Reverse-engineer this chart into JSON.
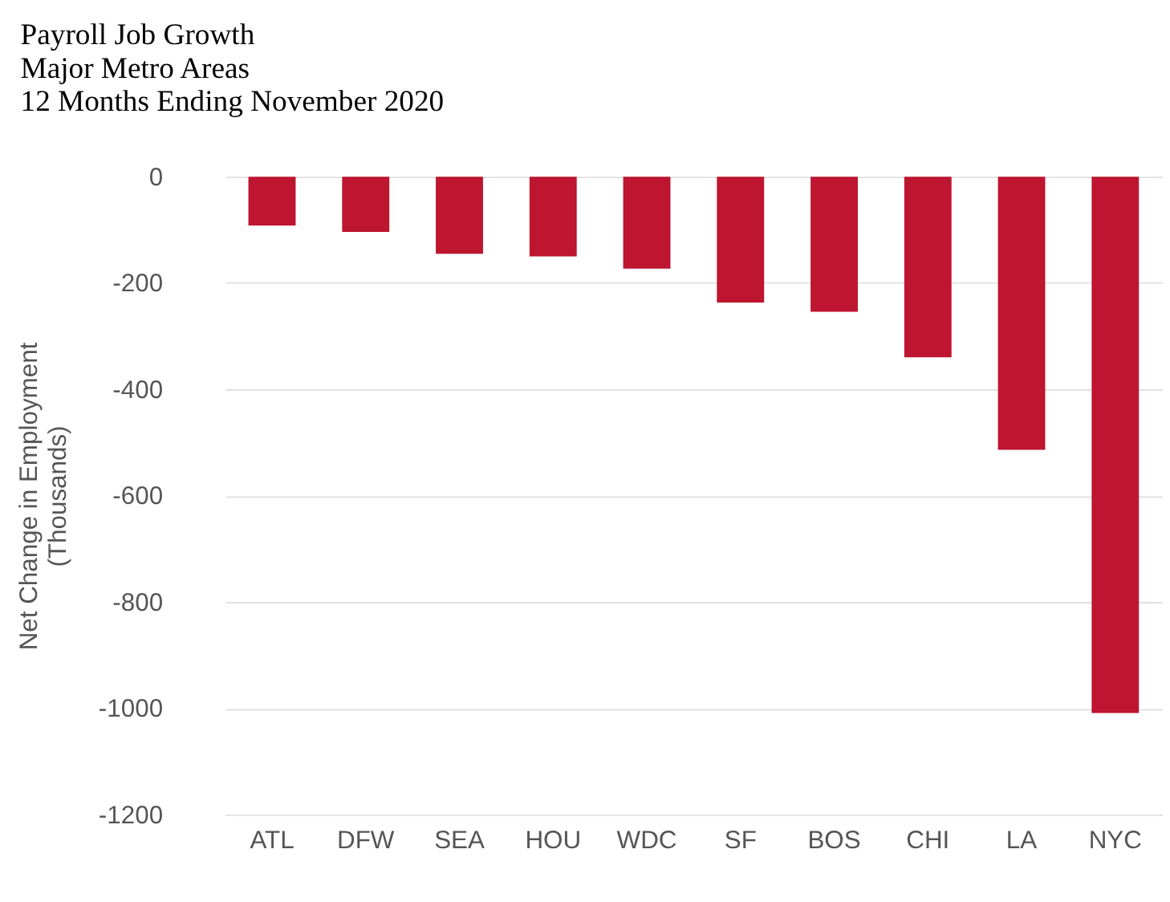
{
  "chart_data": {
    "type": "bar",
    "title": "Payroll Job Growth",
    "subtitle": "Major Metro Areas\n12 Months Ending November 2020",
    "ylabel": "Net Change in Employment\n(Thousands)",
    "categories": [
      "ATL",
      "DFW",
      "SEA",
      "HOU",
      "WDC",
      "SF",
      "BOS",
      "CHI",
      "LA",
      "NYC"
    ],
    "values": [
      -92,
      -104,
      -145,
      -150,
      -173,
      -237,
      -254,
      -340,
      -514,
      -1009
    ],
    "color": "#be1530",
    "ylim": [
      -1200,
      0
    ],
    "yticks": [
      -1200,
      -1000,
      -800,
      -600,
      -400,
      -200,
      0
    ],
    "grid": "y"
  }
}
